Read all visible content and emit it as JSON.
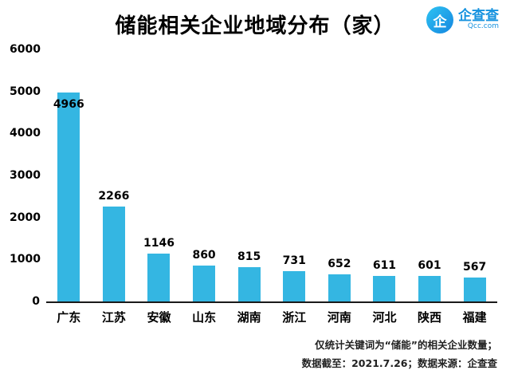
{
  "chart_data": {
    "type": "bar",
    "title": "储能相关企业地域分布（家）",
    "categories": [
      "广东",
      "江苏",
      "安徽",
      "山东",
      "湖南",
      "浙江",
      "河南",
      "河北",
      "陕西",
      "福建"
    ],
    "values": [
      4966,
      2266,
      1146,
      860,
      815,
      731,
      652,
      611,
      601,
      567
    ],
    "ylim": [
      0,
      6000
    ],
    "yticks": [
      0,
      1000,
      2000,
      3000,
      4000,
      5000,
      6000
    ],
    "bar_color": "#34b6e2",
    "grid": false,
    "legend_position": "none",
    "xlabel": "",
    "ylabel": ""
  },
  "logo": {
    "icon_char": "企",
    "name": "企查查",
    "domain": "Qcc.com"
  },
  "footnote": {
    "line1": "仅统计关键词为“储能”的相关企业数量；",
    "line2": "数据截至：2021.7.26；数据来源：企查查"
  }
}
